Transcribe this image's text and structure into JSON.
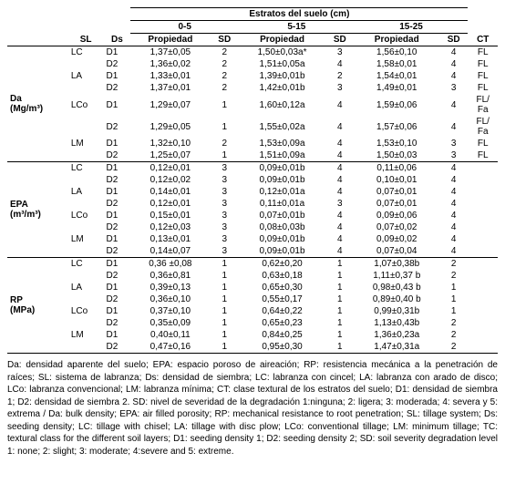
{
  "header": {
    "super": "Estratos del suelo (cm)",
    "groups": [
      "0-5",
      "5-15",
      "15-25"
    ],
    "cols": [
      "SL",
      "Ds",
      "Propiedad",
      "SD",
      "Propiedad",
      "SD",
      "Propiedad",
      "SD",
      "CT"
    ]
  },
  "groups": [
    {
      "label_a": "Da",
      "label_b": "(Mg/m³)",
      "rows": [
        {
          "sl": "LC",
          "ds": "D1",
          "p05": "1,37±0,05",
          "sd05": "2",
          "p515": "1,50±0,03a*",
          "sd515": "3",
          "p1525": "1,56±0,10",
          "sd1525": "4",
          "ct": "FL"
        },
        {
          "sl": "",
          "ds": "D2",
          "p05": "1,36±0,02",
          "sd05": "2",
          "p515": "1,51±0,05a",
          "sd515": "4",
          "p1525": "1,58±0,01",
          "sd1525": "4",
          "ct": "FL"
        },
        {
          "sl": "LA",
          "ds": "D1",
          "p05": "1,33±0,01",
          "sd05": "2",
          "p515": "1,39±0,01b",
          "sd515": "2",
          "p1525": "1,54±0,01",
          "sd1525": "4",
          "ct": "FL"
        },
        {
          "sl": "",
          "ds": "D2",
          "p05": "1,37±0,01",
          "sd05": "2",
          "p515": "1,42±0,01b",
          "sd515": "3",
          "p1525": "1,49±0,01",
          "sd1525": "3",
          "ct": "FL"
        },
        {
          "sl": "LCo",
          "ds": "D1",
          "p05": "1,29±0,07",
          "sd05": "1",
          "p515": "1,60±0,12a",
          "sd515": "4",
          "p1525": "1,59±0,06",
          "sd1525": "4",
          "ct": "FL/\nFa"
        },
        {
          "sl": "",
          "ds": "D2",
          "p05": "1,29±0,05",
          "sd05": "1",
          "p515": "1,55±0,02a",
          "sd515": "4",
          "p1525": "1,57±0,06",
          "sd1525": "4",
          "ct": "FL/\nFa"
        },
        {
          "sl": "LM",
          "ds": "D1",
          "p05": "1,32±0,10",
          "sd05": "2",
          "p515": "1,53±0,09a",
          "sd515": "4",
          "p1525": "1,53±0,10",
          "sd1525": "3",
          "ct": "FL"
        },
        {
          "sl": "",
          "ds": "D2",
          "p05": "1,25±0,07",
          "sd05": "1",
          "p515": "1,51±0,09a",
          "sd515": "4",
          "p1525": "1,50±0,03",
          "sd1525": "3",
          "ct": "FL"
        }
      ]
    },
    {
      "label_a": "EPA",
      "label_b": "(m³/m³)",
      "rows": [
        {
          "sl": "LC",
          "ds": "D1",
          "p05": "0,12±0,01",
          "sd05": "3",
          "p515": "0,09±0,01b",
          "sd515": "4",
          "p1525": "0,11±0,06",
          "sd1525": "4",
          "ct": ""
        },
        {
          "sl": "",
          "ds": "D2",
          "p05": "0,12±0,02",
          "sd05": "3",
          "p515": "0,09±0,01b",
          "sd515": "4",
          "p1525": "0,10±0,01",
          "sd1525": "4",
          "ct": ""
        },
        {
          "sl": "LA",
          "ds": "D1",
          "p05": "0,14±0,01",
          "sd05": "3",
          "p515": "0,12±0,01a",
          "sd515": "4",
          "p1525": "0,07±0,01",
          "sd1525": "4",
          "ct": ""
        },
        {
          "sl": "",
          "ds": "D2",
          "p05": "0,12±0,01",
          "sd05": "3",
          "p515": "0,11±0,01a",
          "sd515": "3",
          "p1525": "0,07±0,01",
          "sd1525": "4",
          "ct": ""
        },
        {
          "sl": "LCo",
          "ds": "D1",
          "p05": "0,15±0,01",
          "sd05": "3",
          "p515": "0,07±0,01b",
          "sd515": "4",
          "p1525": "0,09±0,06",
          "sd1525": "4",
          "ct": ""
        },
        {
          "sl": "",
          "ds": "D2",
          "p05": "0,12±0,03",
          "sd05": "3",
          "p515": "0,08±0,03b",
          "sd515": "4",
          "p1525": "0,07±0,02",
          "sd1525": "4",
          "ct": ""
        },
        {
          "sl": "LM",
          "ds": "D1",
          "p05": "0,13±0,01",
          "sd05": "3",
          "p515": "0,09±0,01b",
          "sd515": "4",
          "p1525": "0,09±0,02",
          "sd1525": "4",
          "ct": ""
        },
        {
          "sl": "",
          "ds": "D2",
          "p05": "0,14±0,07",
          "sd05": "3",
          "p515": "0,09±0,01b",
          "sd515": "4",
          "p1525": "0,07±0,04",
          "sd1525": "4",
          "ct": ""
        }
      ]
    },
    {
      "label_a": "RP",
      "label_b": "(MPa)",
      "rows": [
        {
          "sl": "LC",
          "ds": "D1",
          "p05": "0,36 ±0,08",
          "sd05": "1",
          "p515": "0,62±0,20",
          "sd515": "1",
          "p1525": "1,07±0,38b",
          "sd1525": "2",
          "ct": ""
        },
        {
          "sl": "",
          "ds": "D2",
          "p05": "0,36±0,81",
          "sd05": "1",
          "p515": "0,63±0,18",
          "sd515": "1",
          "p1525": "1,11±0,37 b",
          "sd1525": "2",
          "ct": ""
        },
        {
          "sl": "LA",
          "ds": "D1",
          "p05": "0,39±0,13",
          "sd05": "1",
          "p515": "0,65±0,30",
          "sd515": "1",
          "p1525": "0,98±0,43 b",
          "sd1525": "1",
          "ct": ""
        },
        {
          "sl": "",
          "ds": "D2",
          "p05": "0,36±0,10",
          "sd05": "1",
          "p515": "0,55±0,17",
          "sd515": "1",
          "p1525": "0,89±0,40 b",
          "sd1525": "1",
          "ct": ""
        },
        {
          "sl": "LCo",
          "ds": "D1",
          "p05": "0,37±0,10",
          "sd05": "1",
          "p515": "0,64±0,22",
          "sd515": "1",
          "p1525": "0,99±0,31b",
          "sd1525": "1",
          "ct": ""
        },
        {
          "sl": "",
          "ds": "D2",
          "p05": "0,35±0,09",
          "sd05": "1",
          "p515": "0,65±0,23",
          "sd515": "1",
          "p1525": "1,13±0,43b",
          "sd1525": "2",
          "ct": ""
        },
        {
          "sl": "LM",
          "ds": "D1",
          "p05": "0,40±0,11",
          "sd05": "1",
          "p515": "0,84±0,25",
          "sd515": "1",
          "p1525": "1,36±0,23a",
          "sd1525": "2",
          "ct": ""
        },
        {
          "sl": "",
          "ds": "D2",
          "p05": "0,47±0,16",
          "sd05": "1",
          "p515": "0,95±0,30",
          "sd515": "1",
          "p1525": "1,47±0,31a",
          "sd1525": "2",
          "ct": ""
        }
      ]
    }
  ],
  "caption": "Da: densidad aparente del suelo; EPA: espacio poroso de aireación; RP: resistencia mecánica a la penetración de raíces; SL: sistema de labranza; Ds: densidad de siembra; LC: labranza con cincel; LA: labranza con arado de disco; LCo: labranza convencional; LM: labranza mínima; CT: clase textural de los estratos del suelo; D1: densidad de siembra 1; D2: densidad de siembra 2. SD: nivel de severidad de la degradación 1:ninguna; 2: ligera; 3: moderada; 4: severa y 5: extrema / Da: bulk density; EPA: air filled porosity; RP: mechanical resistance to root penetration; SL: tillage system; Ds: seeding density; LC: tillage with chisel; LA: tillage with disc plow; LCo: conventional tillage; LM: minimum tillage; TC: textural class for the different soil layers; D1: seeding density 1; D2: seeding density 2; SD: soil severity degradation level 1: none; 2: slight; 3: moderate; 4:severe and 5: extreme."
}
